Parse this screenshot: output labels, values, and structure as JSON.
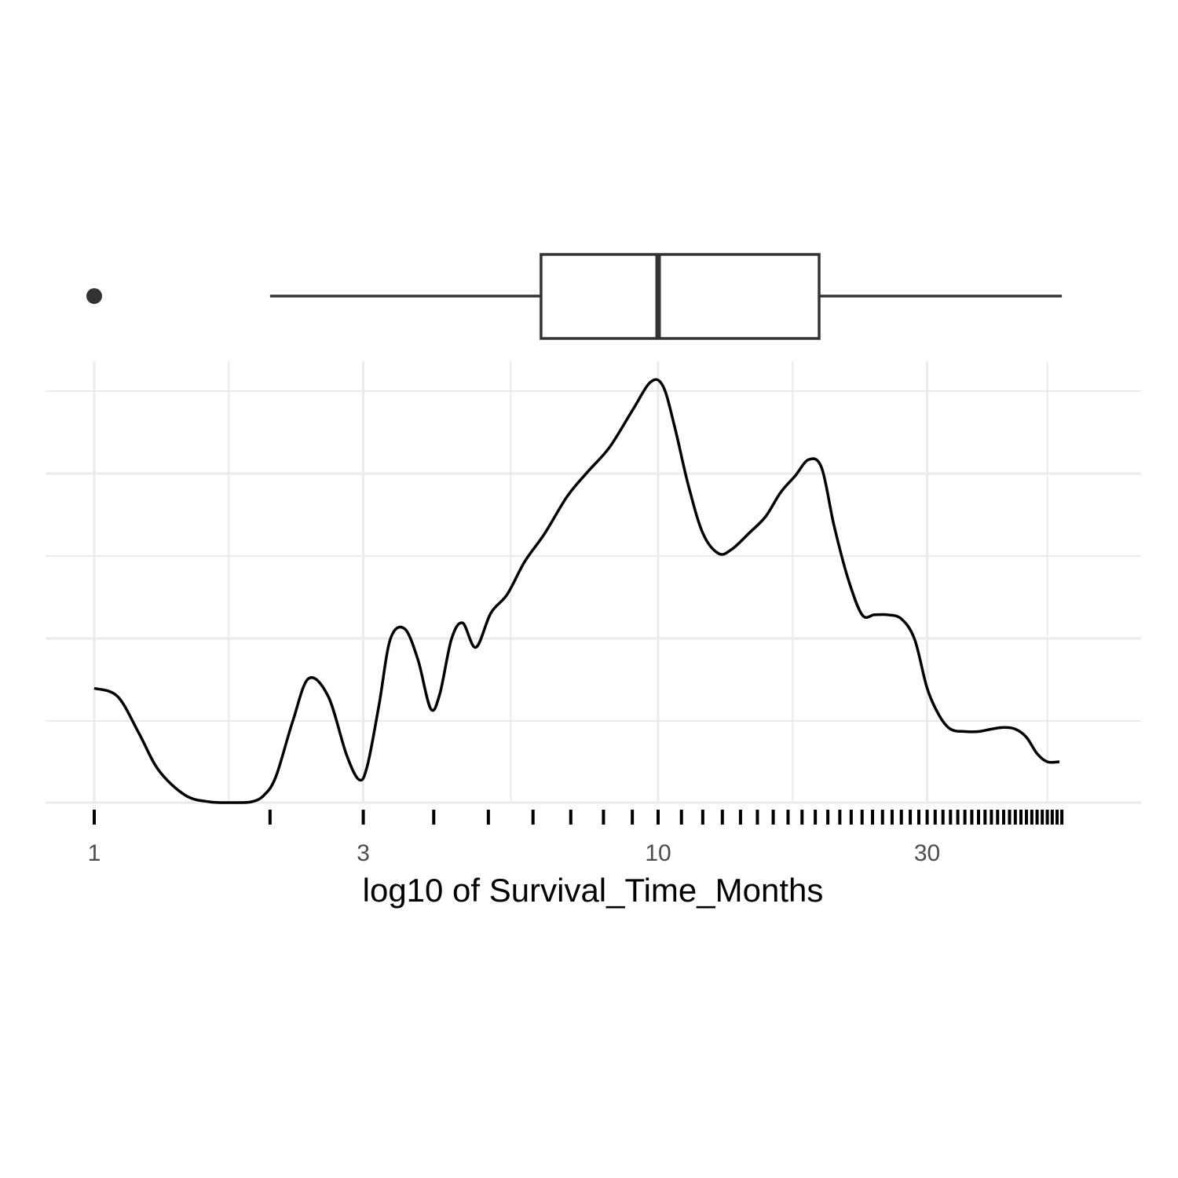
{
  "chart_data": {
    "type": "density",
    "title": "",
    "xlabel": "log10 of Survival_Time_Months",
    "ylabel": "",
    "x_scale": "log10",
    "xlim": [
      1,
      50
    ],
    "x_ticks": [
      1,
      3,
      10,
      30
    ],
    "x_tick_labels": [
      "1",
      "3",
      "10",
      "30"
    ],
    "y_tick_labels_shown": false,
    "grid": true,
    "density_curve": {
      "x": [
        1.0,
        1.1,
        1.2,
        1.3,
        1.45,
        1.6,
        1.75,
        1.9,
        2.0,
        2.1,
        2.25,
        2.4,
        2.6,
        2.8,
        2.95,
        3.05,
        3.2,
        3.35,
        3.55,
        3.75,
        3.95,
        4.1,
        4.3,
        4.5,
        4.75,
        5.05,
        5.4,
        5.8,
        6.3,
        6.9,
        7.5,
        8.2,
        9.0,
        9.7,
        10.2,
        10.7,
        11.3,
        12.0,
        12.8,
        13.5,
        14.5,
        15.5,
        16.5,
        17.5,
        18.5,
        19.5,
        20.5,
        21.7,
        23.0,
        24.2,
        25.5,
        27.0,
        28.5,
        30.0,
        31.5,
        33.0,
        35.0,
        37.0,
        39.0,
        41.0,
        43.0,
        45.0,
        47.0,
        49.0,
        51.5
      ],
      "y": [
        0.14,
        0.13,
        0.085,
        0.04,
        0.009,
        0.001,
        0.0,
        0.001,
        0.009,
        0.032,
        0.1,
        0.152,
        0.13,
        0.059,
        0.028,
        0.045,
        0.12,
        0.2,
        0.213,
        0.175,
        0.115,
        0.133,
        0.2,
        0.22,
        0.19,
        0.232,
        0.255,
        0.295,
        0.33,
        0.375,
        0.405,
        0.435,
        0.48,
        0.515,
        0.51,
        0.46,
        0.39,
        0.33,
        0.305,
        0.31,
        0.33,
        0.35,
        0.38,
        0.4,
        0.42,
        0.41,
        0.34,
        0.275,
        0.23,
        0.23,
        0.23,
        0.225,
        0.2,
        0.14,
        0.107,
        0.09,
        0.087,
        0.087,
        0.09,
        0.092,
        0.09,
        0.08,
        0.06,
        0.05,
        0.05
      ],
      "ylim": [
        0,
        0.55
      ]
    },
    "boxplot": {
      "whisker_low": 2.05,
      "q1": 6.2,
      "median": 10.0,
      "q3": 19.3,
      "whisker_high": 52.0,
      "outliers": [
        1.0
      ]
    },
    "rug": [
      1.0,
      2.05,
      3.0,
      4.0,
      5.0,
      6.0,
      7.0,
      8.0,
      9.0,
      10.0,
      11.0,
      12.0,
      13.0,
      14.0,
      15.0,
      16.0,
      17.0,
      18.0,
      19.0,
      20.0,
      21.0,
      22.0,
      23.0,
      24.0,
      25.0,
      26.0,
      27.0,
      28.0,
      29.0,
      30.0,
      31.0,
      32.0,
      33.0,
      34.0,
      35.0,
      36.0,
      37.0,
      38.0,
      39.0,
      40.0,
      41.0,
      42.0,
      43.0,
      44.0,
      45.0,
      46.0,
      47.0,
      48.0,
      49.0,
      50.0,
      51.0,
      52.0
    ]
  }
}
